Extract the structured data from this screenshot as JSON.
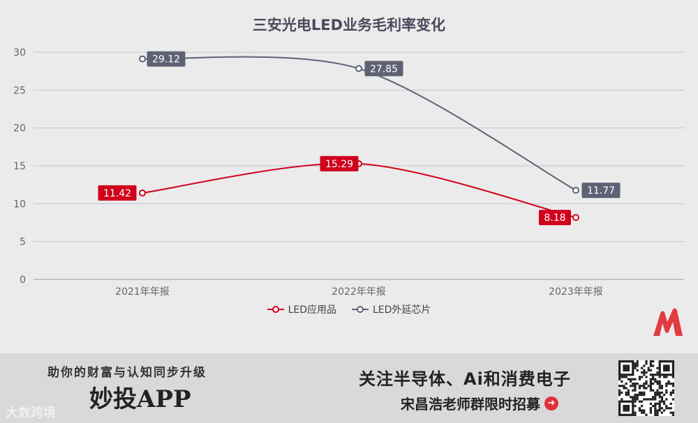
{
  "chart_data": {
    "type": "line",
    "title": "三安光电LED业务毛利率变化",
    "categories": [
      "2021年年报",
      "2022年年报",
      "2023年年报"
    ],
    "ylim": [
      0,
      30
    ],
    "yticks": [
      0,
      5,
      10,
      15,
      20,
      25,
      30
    ],
    "grid": true,
    "legend_position": "bottom",
    "series": [
      {
        "name": "LED应用品",
        "values": [
          11.42,
          15.29,
          8.18
        ],
        "labels": [
          "11.42",
          "15.29",
          "8.18"
        ],
        "color": "#d0021b"
      },
      {
        "name": "LED外延芯片",
        "values": [
          29.12,
          27.85,
          11.77
        ],
        "labels": [
          "29.12",
          "27.85",
          "11.77"
        ],
        "color": "#5f6275"
      }
    ]
  },
  "footer": {
    "slogan": "助你的财富与认知同步升级",
    "brand": "妙投APP",
    "watermark": "大数跨境",
    "topic": "关注半导体、Ai和消费电子",
    "group": "宋昌浩老师群限时招募"
  },
  "icons": {
    "logo": "miaotou-m-logo",
    "arrow": "arrow-right-circle-icon",
    "qr": "qr-code"
  }
}
